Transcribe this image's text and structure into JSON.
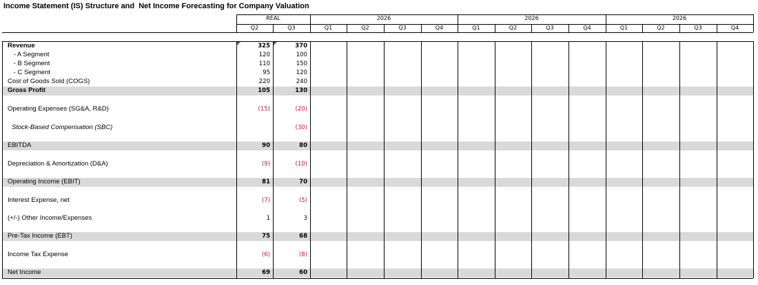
{
  "title": "Income Statement (IS) Structure and  Net Income Forecasting for Company Valuation",
  "header": {
    "real_label": "REAL",
    "real_quarters": [
      "Q2",
      "Q3"
    ],
    "forecast_blocks": [
      {
        "year": "2026",
        "quarters": [
          "Q1",
          "Q2",
          "Q3",
          "Q4"
        ]
      },
      {
        "year": "2026",
        "quarters": [
          "Q1",
          "Q2",
          "Q3",
          "Q4"
        ]
      },
      {
        "year": "2026",
        "quarters": [
          "Q1",
          "Q2",
          "Q3",
          "Q4"
        ]
      }
    ]
  },
  "rows": [
    {
      "label": "Revenue",
      "style": "bold",
      "q2": "325",
      "q3": "370"
    },
    {
      "label": " - A Segment",
      "style": "seg",
      "q2": "120",
      "q3": "100"
    },
    {
      "label": " - B Segment",
      "style": "seg",
      "q2": "110",
      "q3": "150"
    },
    {
      "label": " - C Segment",
      "style": "seg",
      "q2": "95",
      "q3": "120"
    },
    {
      "label": "Cost of Goods Sold (COGS)",
      "style": "normal",
      "q2": "220",
      "q3": "240"
    },
    {
      "label": "Gross Profit",
      "style": "bold-shaded",
      "q2": "105",
      "q3": "130"
    },
    {
      "label": "Operating Expenses (SG&A, R&D)",
      "style": "normal",
      "q2": "(15)",
      "q3": "(20)"
    },
    {
      "label": "Stock-Based Compensation (SBC)",
      "style": "italic",
      "q2": "",
      "q3": "(30)"
    },
    {
      "label": "EBITDA",
      "style": "shaded",
      "q2": "90",
      "q3": "80"
    },
    {
      "label": "Depreciation & Amortization (D&A)",
      "style": "normal",
      "q2": "(9)",
      "q3": "(10)"
    },
    {
      "label": "Operating Income (EBIT)",
      "style": "shaded",
      "q2": "81",
      "q3": "70"
    },
    {
      "label": "Interest Expense, net",
      "style": "normal",
      "q2": "(7)",
      "q3": "(5)"
    },
    {
      "label": "(+/-) Other Income/Expenses",
      "style": "normal",
      "q2": "1",
      "q3": "3"
    },
    {
      "label": "Pre-Tax Income (EBT)",
      "style": "shaded",
      "q2": "75",
      "q3": "68"
    },
    {
      "label": "Income Tax Expense",
      "style": "normal",
      "q2": "(6)",
      "q3": "(8)"
    },
    {
      "label": "Net Income",
      "style": "shaded",
      "q2": "69",
      "q3": "60"
    }
  ],
  "colors": {
    "negative": "#c0143c",
    "shade": "#d9d9d9",
    "flag": "#2e7d32"
  }
}
